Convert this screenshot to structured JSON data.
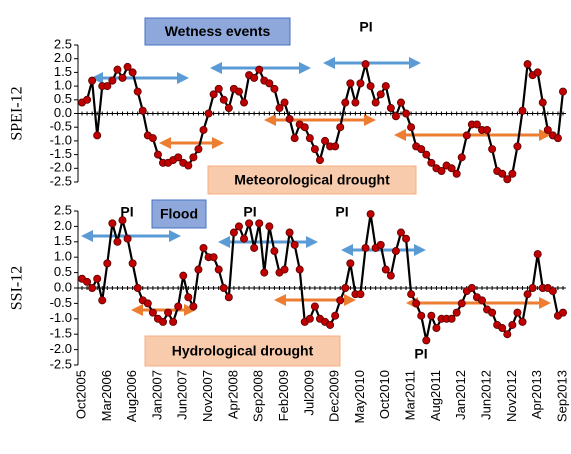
{
  "chart_data": [
    {
      "type": "line",
      "y_label": "SPEI-12",
      "color": "#000000",
      "marker_color": "#c00000",
      "values": [
        0.4,
        0.5,
        1.2,
        -0.8,
        1.0,
        1.0,
        1.2,
        1.6,
        1.3,
        1.7,
        1.5,
        0.8,
        0.1,
        -0.8,
        -0.9,
        -1.5,
        -1.8,
        -1.8,
        -1.7,
        -1.6,
        -1.8,
        -1.9,
        -1.6,
        -1.3,
        -0.6,
        0.0,
        0.7,
        0.9,
        0.5,
        0.2,
        0.9,
        0.8,
        0.4,
        1.4,
        1.3,
        1.6,
        1.2,
        1.1,
        0.9,
        0.2,
        0.4,
        -0.2,
        -0.9,
        -0.4,
        -0.5,
        -0.9,
        -1.3,
        -1.7,
        -1.0,
        -1.2,
        -1.2,
        -0.5,
        0.4,
        1.1,
        0.4,
        1.1,
        1.8,
        1.0,
        0.4,
        0.7,
        1.0,
        0.2,
        -0.1,
        0.4,
        0.0,
        -0.5,
        -1.2,
        -1.3,
        -1.5,
        -1.8,
        -2.0,
        -2.1,
        -1.9,
        -2.0,
        -2.2,
        -1.6,
        -0.8,
        -0.4,
        -0.4,
        -0.6,
        -0.6,
        -1.3,
        -2.1,
        -2.2,
        -2.4,
        -2.2,
        -1.2,
        0.1,
        1.8,
        1.4,
        1.5,
        0.4,
        -0.6,
        -0.8,
        -0.9,
        0.8
      ],
      "ylim": [
        -2.5,
        2.5
      ],
      "yticks": [
        2.5,
        {
          "value": 2.0,
          "label": "2.0"
        },
        1.5,
        {
          "value": 1.0,
          "label": "1.0"
        },
        0.5,
        {
          "value": 0.0,
          "label": "0.0"
        },
        -0.5,
        {
          "value": -1.0,
          "label": "-1.0"
        },
        -1.5,
        {
          "value": -2.0,
          "label": "-2.0"
        },
        -2.5
      ],
      "annotations": [
        "Wetness events",
        "Meteorological drought",
        "PI"
      ]
    },
    {
      "type": "line",
      "y_label": "SSI-12",
      "color": "#000000",
      "marker_color": "#c00000",
      "categories": [
        "Oct2005",
        null,
        null,
        null,
        null,
        "Mar2006",
        null,
        null,
        null,
        null,
        "Aug2006",
        null,
        null,
        null,
        null,
        "Jan2007",
        null,
        null,
        null,
        null,
        "Jun2007",
        null,
        null,
        null,
        null,
        "Nov2007",
        null,
        null,
        null,
        null,
        "Apr2008",
        null,
        null,
        null,
        null,
        "Sep2008",
        null,
        null,
        null,
        null,
        "Feb2009",
        null,
        null,
        null,
        null,
        "Jul2009",
        null,
        null,
        null,
        null,
        "Dec2009",
        null,
        null,
        null,
        null,
        "May2010",
        null,
        null,
        null,
        null,
        "Oct2010",
        null,
        null,
        null,
        null,
        "Mar2011",
        null,
        null,
        null,
        null,
        "Aug2011",
        null,
        null,
        null,
        null,
        "Jan2012",
        null,
        null,
        null,
        null,
        "Jun2012",
        null,
        null,
        null,
        null,
        "Nov2012",
        null,
        null,
        null,
        null,
        "Apr2013",
        null,
        null,
        null,
        null,
        "Sep2013"
      ],
      "values": [
        0.3,
        0.2,
        0.0,
        0.3,
        -0.4,
        0.8,
        2.1,
        1.5,
        2.2,
        1.6,
        0.8,
        0.0,
        -0.4,
        -0.5,
        -0.8,
        -1.0,
        -1.1,
        -0.8,
        -1.1,
        -0.6,
        0.4,
        -0.3,
        -0.6,
        0.6,
        1.3,
        1.0,
        1.0,
        0.6,
        0.0,
        -0.3,
        1.8,
        2.0,
        1.6,
        2.1,
        1.3,
        2.1,
        0.5,
        2.0,
        1.2,
        0.5,
        0.6,
        1.8,
        1.4,
        0.6,
        -1.1,
        -1.0,
        -0.6,
        -1.0,
        -1.1,
        -1.2,
        -0.9,
        -0.4,
        0.0,
        0.8,
        -0.2,
        -0.2,
        1.3,
        2.4,
        1.3,
        1.4,
        0.6,
        0.4,
        1.2,
        1.8,
        1.6,
        -0.2,
        -0.5,
        -0.9,
        -1.7,
        -0.9,
        -1.3,
        -1.0,
        -1.0,
        -1.0,
        -0.8,
        -0.5,
        -0.1,
        0.0,
        -0.3,
        -0.4,
        -0.7,
        -0.8,
        -1.2,
        -1.3,
        -1.5,
        -1.2,
        -0.8,
        -1.1,
        -0.2,
        0.0,
        1.1,
        0.0,
        0.0,
        -0.1,
        -0.9,
        -0.8
      ],
      "ylim": [
        -2.5,
        2.5
      ],
      "yticks": [
        2.5,
        {
          "value": 2.0,
          "label": "2.0"
        },
        1.5,
        {
          "value": 1.0,
          "label": "1.0"
        },
        0.5,
        {
          "value": 0.0,
          "label": "0.0"
        },
        -0.5,
        {
          "value": -1.0,
          "label": "-1.0"
        },
        -1.5,
        {
          "value": -2.0,
          "label": "-2.0"
        },
        -2.5
      ],
      "annotations": [
        "Flood",
        "Hydrological drought",
        "PI",
        "PI",
        "PI",
        "PI"
      ]
    }
  ]
}
